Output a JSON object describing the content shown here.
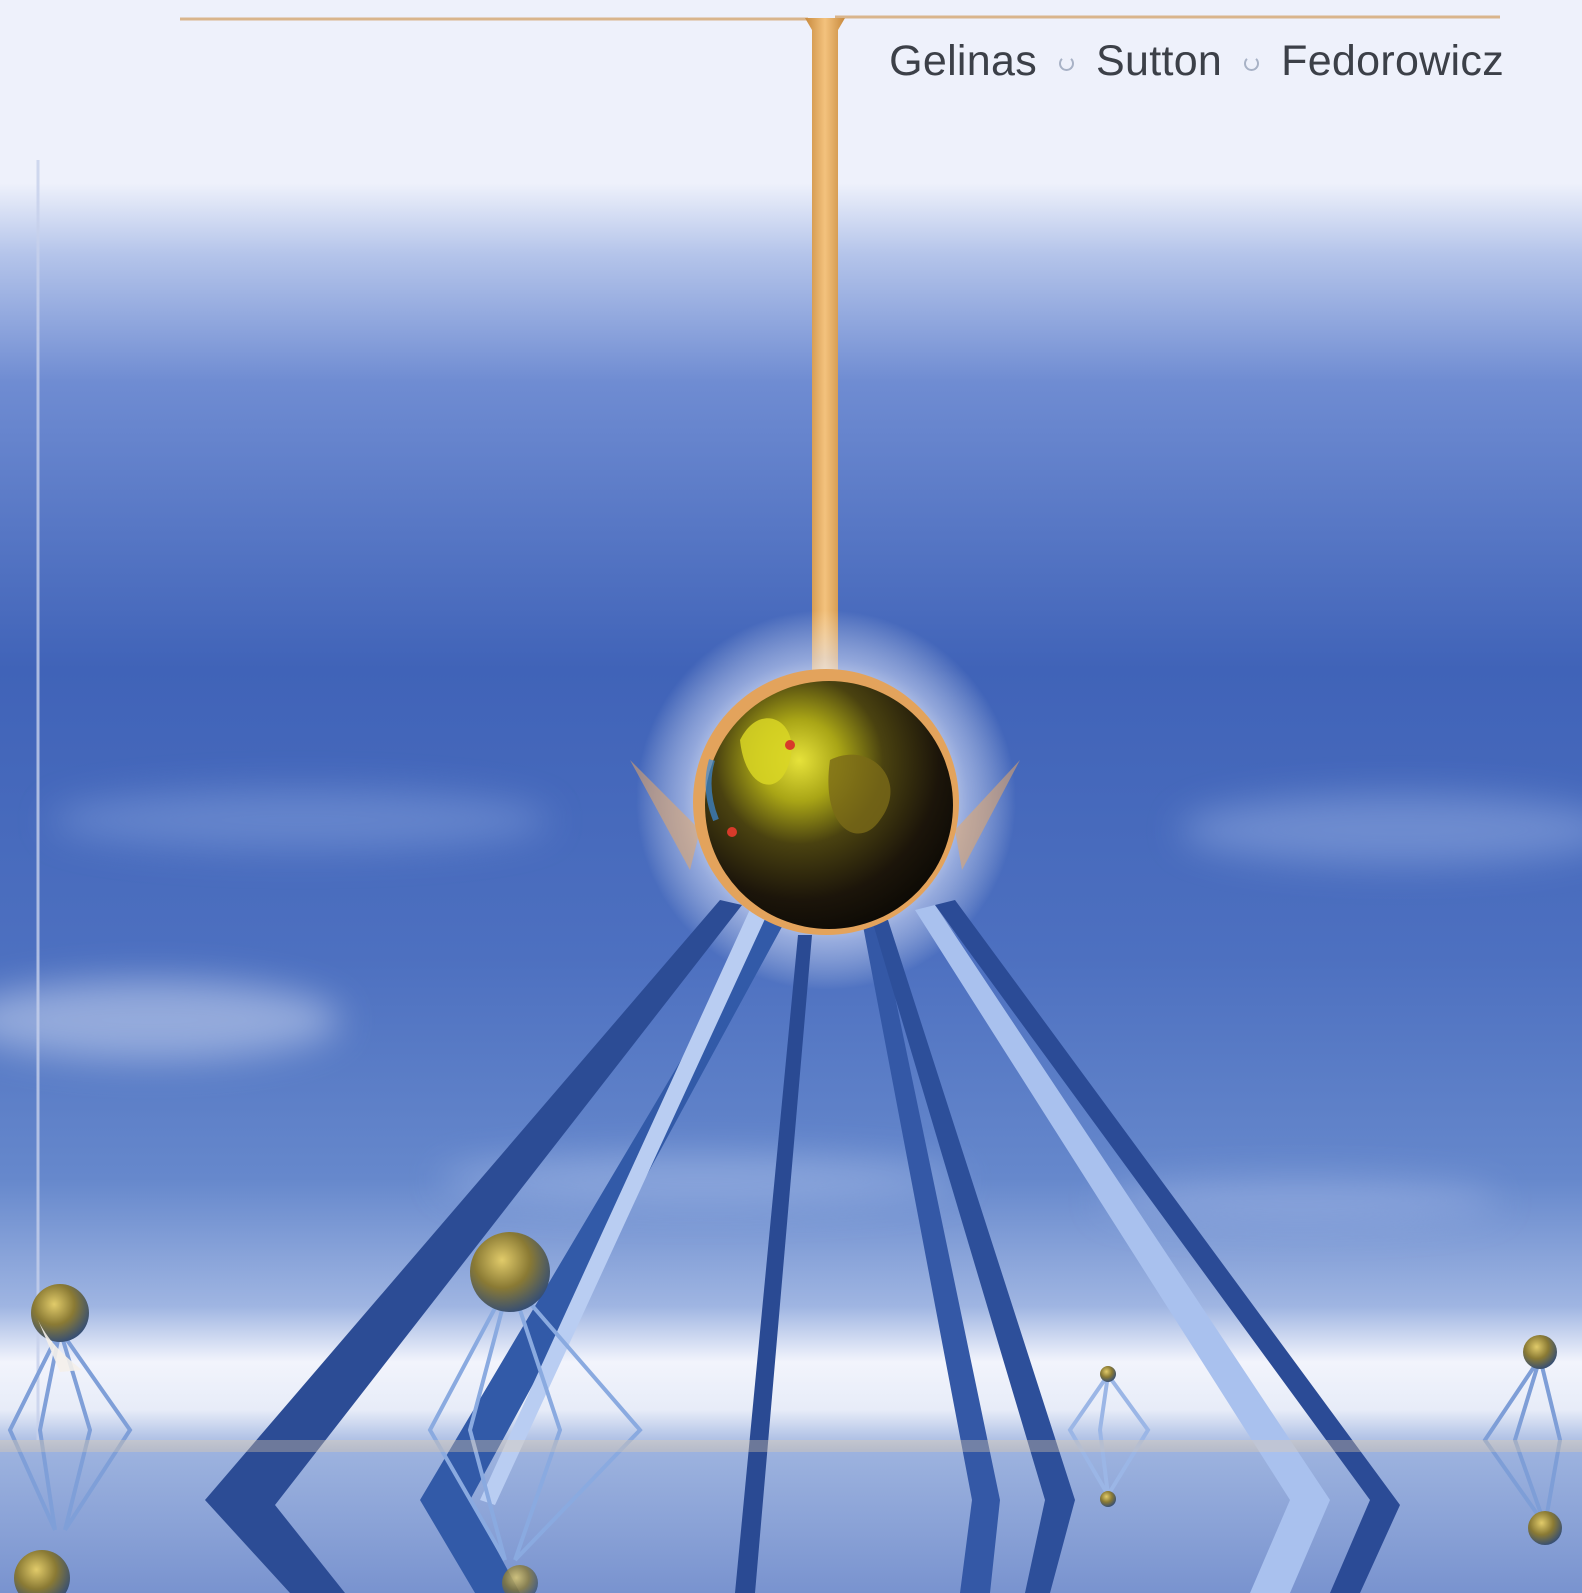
{
  "cover": {
    "authors": [
      "Gelinas",
      "Sutton",
      "Fedorowicz"
    ]
  },
  "colors": {
    "sky_top": "#eef1fb",
    "sky_mid": "#5b7cc8",
    "sky_deep": "#3a5eb5",
    "horizon": "#f2f4fc",
    "water": "#8fa8d9",
    "gold_rod": "#e4a35a",
    "globe_core": "#1b1608",
    "globe_land": "#c8c81c",
    "strut_dark": "#2d4f9a",
    "strut_light": "#a9c1ee",
    "author_text": "#3c4048"
  },
  "icons": [
    "globe-icon"
  ]
}
